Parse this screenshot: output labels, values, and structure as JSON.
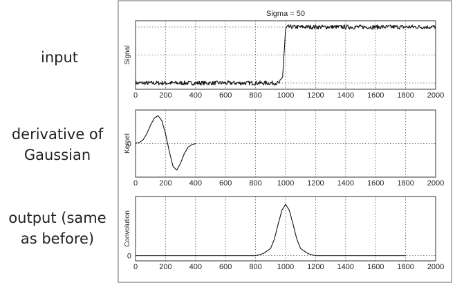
{
  "labels": {
    "input": "input",
    "kernel_line1": "derivative of",
    "kernel_line2": "Gaussian",
    "output_line1": "output (same",
    "output_line2": "as before)"
  },
  "chart_data": [
    {
      "type": "line",
      "title": "Sigma = 50",
      "ylabel": "Signal",
      "xlim": [
        0,
        2000
      ],
      "xticks": [
        0,
        200,
        400,
        600,
        800,
        1000,
        1200,
        1400,
        1600,
        1800,
        2000
      ],
      "yticks": [],
      "grid": true,
      "series": [
        {
          "x": [
            0,
            100,
            200,
            300,
            400,
            500,
            600,
            700,
            800,
            900,
            960,
            980,
            1000,
            1010,
            1020,
            1100,
            1200,
            1300,
            1400,
            1500,
            1600,
            1700,
            1800,
            1900,
            2000
          ],
          "y": [
            0.05,
            0.05,
            0.05,
            0.05,
            0.05,
            0.05,
            0.05,
            0.05,
            0.05,
            0.05,
            0.05,
            0.15,
            0.9,
            0.95,
            0.95,
            0.95,
            0.95,
            0.95,
            0.95,
            0.95,
            0.95,
            0.95,
            0.95,
            0.95,
            0.95
          ]
        }
      ]
    },
    {
      "type": "line",
      "title": "",
      "ylabel": "Kernel",
      "xlim": [
        0,
        2000
      ],
      "xticks": [
        0,
        200,
        400,
        600,
        800,
        1000,
        1200,
        1400,
        1600,
        1800,
        2000
      ],
      "yticks": [
        0
      ],
      "grid": true,
      "series": [
        {
          "x": [
            0,
            25,
            50,
            75,
            100,
            125,
            150,
            175,
            200,
            225,
            250,
            275,
            300,
            325,
            350,
            375,
            400
          ],
          "y": [
            0.01,
            0.04,
            0.13,
            0.35,
            0.66,
            0.91,
            1.0,
            0.82,
            0.35,
            -0.28,
            -0.82,
            -0.95,
            -0.7,
            -0.36,
            -0.13,
            -0.04,
            0.0
          ]
        }
      ]
    },
    {
      "type": "line",
      "title": "",
      "ylabel": "Convolution",
      "xlim": [
        0,
        2000
      ],
      "xticks": [
        0,
        200,
        400,
        600,
        800,
        1000,
        1200,
        1400,
        1600,
        1800,
        2000
      ],
      "yticks": [
        0
      ],
      "grid": true,
      "series": [
        {
          "x": [
            0,
            400,
            560,
            600,
            800,
            850,
            900,
            925,
            950,
            975,
            1000,
            1025,
            1050,
            1075,
            1100,
            1150,
            1200,
            1400,
            1500,
            1600,
            1800
          ],
          "y": [
            0,
            0,
            0,
            0,
            0,
            0.04,
            0.14,
            0.32,
            0.61,
            0.88,
            1.0,
            0.88,
            0.61,
            0.32,
            0.14,
            0.04,
            0,
            0,
            0,
            0,
            0
          ]
        }
      ]
    }
  ]
}
